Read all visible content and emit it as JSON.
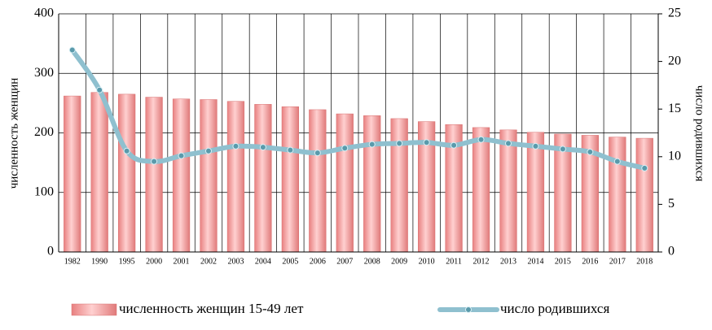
{
  "chart_data": {
    "type": "bar-line",
    "categories": [
      "1982",
      "1990",
      "1995",
      "2000",
      "2001",
      "2002",
      "2003",
      "2004",
      "2005",
      "2006",
      "2007",
      "2008",
      "2009",
      "2010",
      "2011",
      "2012",
      "2013",
      "2014",
      "2015",
      "2016",
      "2017",
      "2018"
    ],
    "series": [
      {
        "name": "численность женщин 15-49 лет",
        "type": "bar",
        "color": "#f4a0a0",
        "values": [
          262,
          268,
          265,
          260,
          257,
          256,
          253,
          248,
          244,
          239,
          232,
          229,
          224,
          219,
          214,
          209,
          205,
          201,
          198,
          196,
          193,
          191
        ]
      },
      {
        "name": "число родившихся",
        "type": "line",
        "axis": "y2",
        "color": "#8fc0cf",
        "values": [
          21.2,
          17.0,
          10.6,
          9.5,
          10.1,
          10.6,
          11.1,
          11.0,
          10.7,
          10.4,
          10.9,
          11.3,
          11.4,
          11.5,
          11.2,
          11.8,
          11.4,
          11.1,
          10.8,
          10.5,
          9.5,
          8.8
        ]
      }
    ],
    "ylabel": "численность женщин",
    "y2label": "число родившихся",
    "ylim": [
      0,
      400
    ],
    "yticks": [
      0,
      100,
      200,
      300,
      400
    ],
    "y2lim": [
      0,
      25
    ],
    "y2ticks": [
      0,
      5,
      10,
      15,
      20,
      25
    ],
    "grid": true,
    "legend": "bottom"
  }
}
